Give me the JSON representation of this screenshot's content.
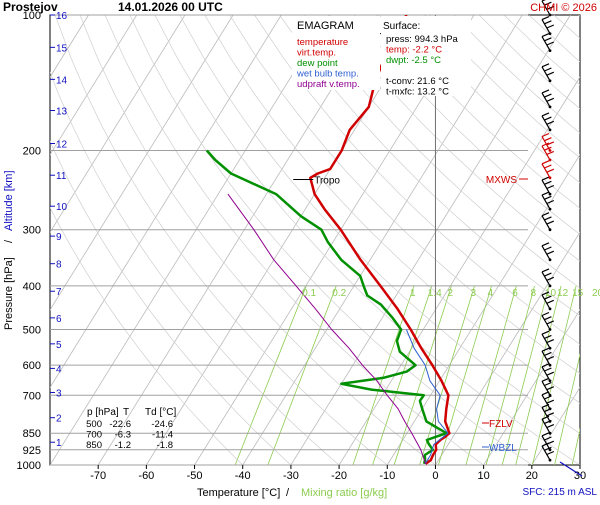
{
  "header": {
    "station": "Prostejov",
    "datetime": "14.01.2026 00 UTC",
    "copyright": "CHMI © 2026"
  },
  "legend": {
    "title": "EMAGRAM",
    "items": [
      {
        "label": "temperature",
        "color": "#d00000"
      },
      {
        "label": "virt.temp.",
        "color": "#d00000"
      },
      {
        "label": "dew point",
        "color": "#009000"
      },
      {
        "label": "wet bulb temp.",
        "color": "#3060d0"
      },
      {
        "label": "udpraft v.temp.",
        "color": "#900090"
      }
    ]
  },
  "surface": {
    "title": "Surface:",
    "rows": [
      {
        "text": "press: 994.3 hPa",
        "color": "#000000"
      },
      {
        "text": "temp: -2.2 °C",
        "color": "#d00000"
      },
      {
        "text": "dwpt: -2.5 °C",
        "color": "#009000"
      },
      {
        "text": "",
        "color": "#000000"
      },
      {
        "text": "t-conv: 21.6 °C",
        "color": "#000000"
      },
      {
        "text": "t-mxfc: 13.2 °C",
        "color": "#000000"
      }
    ]
  },
  "table": {
    "headers": [
      "p [hPa]",
      "T",
      "Td [°C]"
    ],
    "rows": [
      [
        "500",
        "-22.6",
        "-24.6"
      ],
      [
        "700",
        "-6.3",
        "-11.4"
      ],
      [
        "850",
        "-1.2",
        "-1.8"
      ]
    ]
  },
  "annotations": {
    "tropo_label": "Tropo",
    "mxws": "MXWS",
    "fzlv": "FZLV",
    "wbzl": "WBZL",
    "sfc": "SFC: 215 m ASL"
  },
  "colors": {
    "temperature": "#d00000",
    "dewpoint": "#009000",
    "wetbulb": "#3060d0",
    "updraft": "#900090",
    "mixing": "#8ccc50",
    "altitude": "#1010c0",
    "grid": "#a0a0a0"
  },
  "chart_data": {
    "type": "line",
    "xlabel": "Temperature [°C]",
    "xlabel_sep": "/",
    "xlabel2": "Mixing ratio [g/kg]",
    "ylabel": "Pressure [hPa]",
    "ylabel_sep": "/",
    "ylabel2": "Altitude [km]",
    "log_pressure_axis": true,
    "xlim": [
      -80,
      30
    ],
    "ylim": [
      1000,
      100
    ],
    "x_ticks": [
      -70,
      -60,
      -50,
      -40,
      -30,
      -20,
      -10,
      0,
      10,
      20,
      30
    ],
    "pressure_ticks": [
      100,
      200,
      300,
      400,
      500,
      600,
      700,
      850,
      925,
      1000
    ],
    "skew_deg_per_decade": 58,
    "altitude_ticks": [
      {
        "label": "1",
        "p": 890
      },
      {
        "label": "2",
        "p": 785
      },
      {
        "label": "3",
        "p": 690
      },
      {
        "label": "4",
        "p": 610
      },
      {
        "label": "5",
        "p": 538
      },
      {
        "label": "6",
        "p": 471
      },
      {
        "label": "7",
        "p": 411
      },
      {
        "label": "8",
        "p": 357
      },
      {
        "label": "9",
        "p": 310
      },
      {
        "label": "10",
        "p": 266
      },
      {
        "label": "11",
        "p": 227
      },
      {
        "label": "12",
        "p": 193
      },
      {
        "label": "13",
        "p": 163
      },
      {
        "label": "14",
        "p": 139
      },
      {
        "label": "15",
        "p": 118
      },
      {
        "label": "16",
        "p": 100
      }
    ],
    "mixing_ratio_labels": [
      "0.1",
      "0.2",
      "1",
      "1.4",
      "2",
      "3",
      "4",
      "6",
      "8",
      "10",
      "12",
      "15",
      "20",
      "25"
    ],
    "series": [
      {
        "name": "temperature",
        "color": "#d00000",
        "points": [
          [
            994,
            -2.2
          ],
          [
            975,
            -1.6
          ],
          [
            950,
            -1.8
          ],
          [
            925,
            -1.8
          ],
          [
            900,
            -2.6
          ],
          [
            880,
            -2.2
          ],
          [
            865,
            -1.6
          ],
          [
            850,
            -1.2
          ],
          [
            800,
            -3.6
          ],
          [
            750,
            -5.0
          ],
          [
            700,
            -6.3
          ],
          [
            650,
            -9.6
          ],
          [
            600,
            -13.5
          ],
          [
            550,
            -18.0
          ],
          [
            500,
            -22.6
          ],
          [
            450,
            -28.0
          ],
          [
            400,
            -34.5
          ],
          [
            350,
            -42.0
          ],
          [
            300,
            -50.0
          ],
          [
            270,
            -56.0
          ],
          [
            250,
            -60.0
          ],
          [
            230,
            -63.0
          ],
          [
            225,
            -62.0
          ],
          [
            220,
            -60.0
          ],
          [
            200,
            -60.0
          ],
          [
            180,
            -61.0
          ],
          [
            160,
            -60.0
          ],
          [
            140,
            -62.0
          ],
          [
            125,
            -63.0
          ],
          [
            110,
            -64.0
          ],
          [
            100,
            -64.0
          ]
        ]
      },
      {
        "name": "dew point",
        "color": "#009000",
        "points": [
          [
            994,
            -2.5
          ],
          [
            975,
            -2.8
          ],
          [
            950,
            -3.5
          ],
          [
            925,
            -2.5
          ],
          [
            900,
            -4.0
          ],
          [
            880,
            -5.0
          ],
          [
            865,
            -3.5
          ],
          [
            850,
            -1.8
          ],
          [
            800,
            -7.5
          ],
          [
            750,
            -10.0
          ],
          [
            720,
            -11.5
          ],
          [
            700,
            -11.4
          ],
          [
            680,
            -23.0
          ],
          [
            660,
            -30.0
          ],
          [
            640,
            -22.0
          ],
          [
            620,
            -18.0
          ],
          [
            600,
            -17.0
          ],
          [
            560,
            -22.0
          ],
          [
            530,
            -24.0
          ],
          [
            500,
            -24.6
          ],
          [
            470,
            -28.0
          ],
          [
            440,
            -32.0
          ],
          [
            420,
            -36.0
          ],
          [
            400,
            -38.0
          ],
          [
            380,
            -40.0
          ],
          [
            350,
            -46.0
          ],
          [
            320,
            -51.0
          ],
          [
            300,
            -54.0
          ],
          [
            280,
            -60.0
          ],
          [
            250,
            -68.0
          ],
          [
            225,
            -80.0
          ],
          [
            210,
            -85.0
          ],
          [
            200,
            -88.0
          ]
        ]
      },
      {
        "name": "wet bulb temp.",
        "color": "#3060d0",
        "points": [
          [
            994,
            -2.3
          ],
          [
            950,
            -2.3
          ],
          [
            900,
            -3.0
          ],
          [
            850,
            -1.5
          ],
          [
            800,
            -5.0
          ],
          [
            750,
            -7.0
          ],
          [
            700,
            -8.0
          ],
          [
            650,
            -12.0
          ],
          [
            600,
            -15.0
          ],
          [
            550,
            -19.5
          ],
          [
            500,
            -23.5
          ]
        ]
      },
      {
        "name": "udpraft v.temp.",
        "color": "#900090",
        "points": [
          [
            994,
            -2.2
          ],
          [
            925,
            -5.0
          ],
          [
            850,
            -9.0
          ],
          [
            800,
            -12.0
          ],
          [
            750,
            -15.0
          ],
          [
            700,
            -19.0
          ],
          [
            650,
            -23.0
          ],
          [
            600,
            -28.0
          ],
          [
            550,
            -33.0
          ],
          [
            500,
            -39.0
          ],
          [
            450,
            -45.0
          ],
          [
            400,
            -52.0
          ],
          [
            350,
            -60.0
          ],
          [
            300,
            -68.0
          ],
          [
            250,
            -78.0
          ]
        ]
      }
    ],
    "tropopause_levels": [
      110,
      232
    ]
  }
}
